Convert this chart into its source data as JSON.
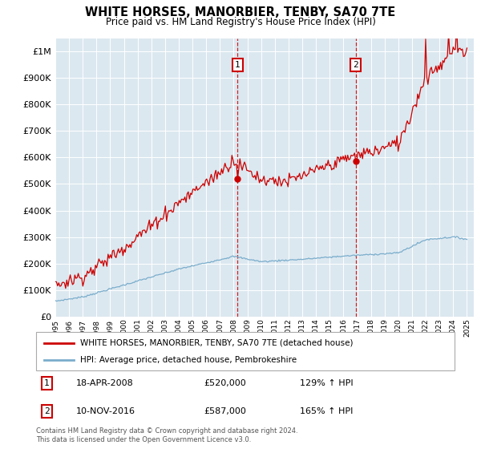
{
  "title": "WHITE HORSES, MANORBIER, TENBY, SA70 7TE",
  "subtitle": "Price paid vs. HM Land Registry's House Price Index (HPI)",
  "legend_line1": "WHITE HORSES, MANORBIER, TENBY, SA70 7TE (detached house)",
  "legend_line2": "HPI: Average price, detached house, Pembrokeshire",
  "ann1_date": "18-APR-2008",
  "ann1_price": "£520,000",
  "ann1_hpi": "129% ↑ HPI",
  "ann2_date": "10-NOV-2016",
  "ann2_price": "£587,000",
  "ann2_hpi": "165% ↑ HPI",
  "footer": "Contains HM Land Registry data © Crown copyright and database right 2024.\nThis data is licensed under the Open Government Licence v3.0.",
  "red_color": "#cc0000",
  "blue_color": "#7aadcc",
  "bg_color": "#dce8f0",
  "ann_x1": 2008.29,
  "ann_x2": 2016.87,
  "ylim_top": 1050000,
  "ylim_bottom": 0,
  "xmin": 1995.0,
  "xmax": 2025.5,
  "yticks": [
    0,
    100000,
    200000,
    300000,
    400000,
    500000,
    600000,
    700000,
    800000,
    900000,
    1000000
  ]
}
